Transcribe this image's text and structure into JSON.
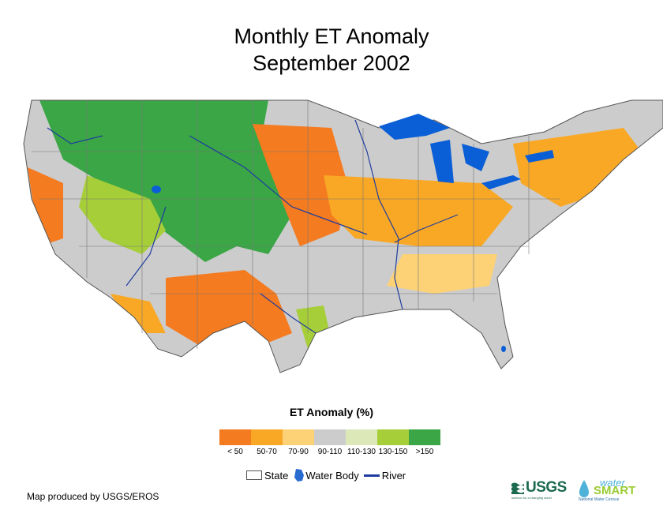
{
  "title": {
    "line1": "Monthly ET Anomaly",
    "line2": "September 2002"
  },
  "legend": {
    "title": "ET Anomaly (%)",
    "classes": [
      {
        "label": "< 50",
        "color": "#f47b20"
      },
      {
        "label": "50-70",
        "color": "#f9a825"
      },
      {
        "label": "70-90",
        "color": "#fdd276"
      },
      {
        "label": "90-110",
        "color": "#cccccc"
      },
      {
        "label": "110-130",
        "color": "#dde8b9"
      },
      {
        "label": "130-150",
        "color": "#a6ce39"
      },
      {
        "label": ">150",
        "color": "#3aa645"
      }
    ],
    "symbols": {
      "state": "State",
      "water_body": "Water Body",
      "river": "River"
    },
    "water_color": "#0b5fd6",
    "river_color": "#1f3c9e"
  },
  "credit": "Map produced by USGS/EROS",
  "logos": {
    "usgs": "USGS",
    "usgs_tagline": "science for a changing world",
    "watersmart_word1": "water",
    "watersmart_word2": "SMART",
    "watersmart_sub": "National Water Census"
  }
}
